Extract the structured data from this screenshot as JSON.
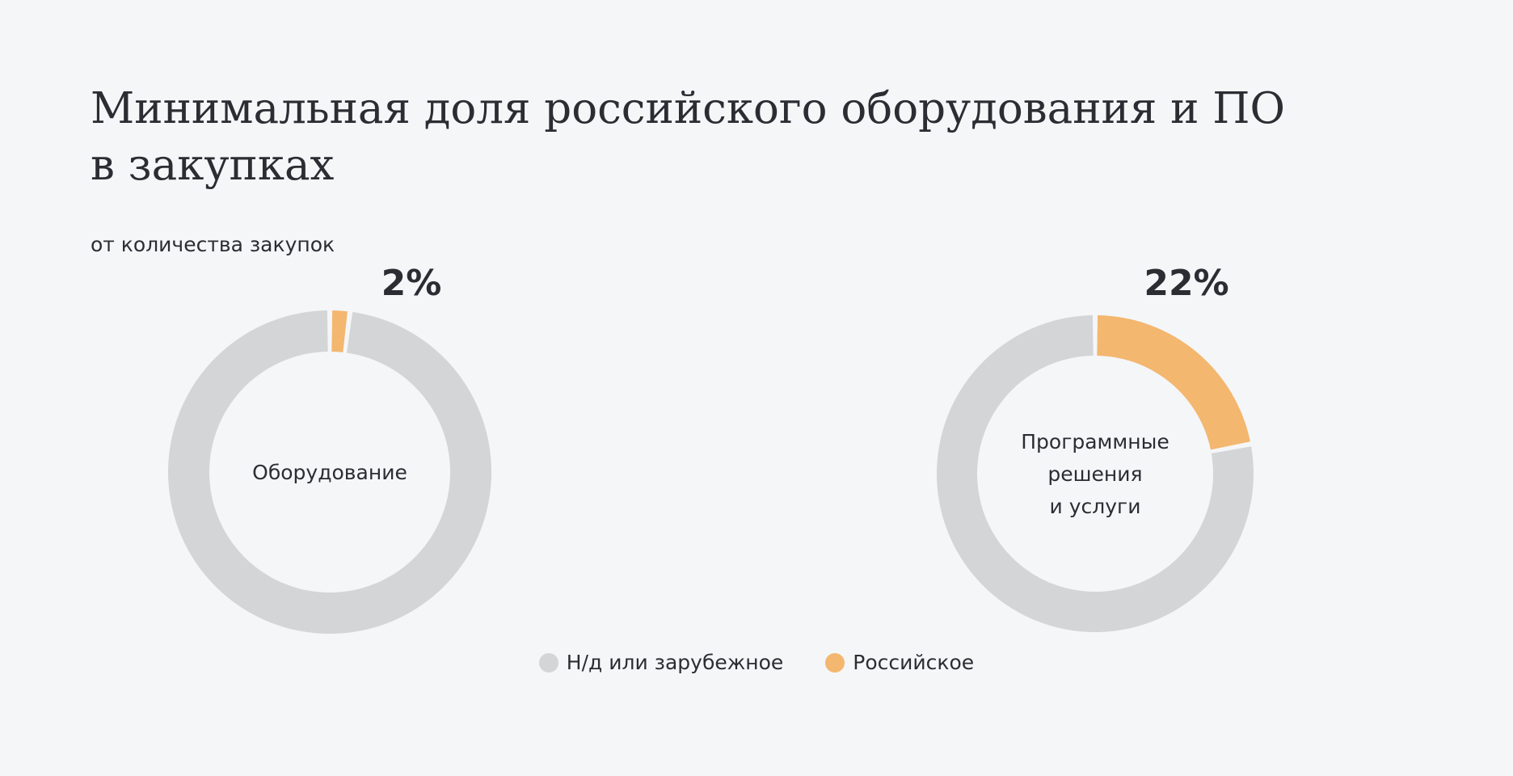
{
  "title": {
    "line1": "Минимальная доля российского оборудования и ПО",
    "line2": "в закупках"
  },
  "subtitle": "от количества закупок",
  "colors": {
    "foreign": "#d4d5d7",
    "russian": "#f3b76f",
    "background": "#f5f6f8",
    "text": "#2b2d33"
  },
  "chart_data": {
    "type": "pie",
    "variant": "donut",
    "charts": [
      {
        "label_lines": [
          "Оборудование"
        ],
        "russian_percent_label": "2%",
        "slices": [
          {
            "name": "Российское",
            "value": 2
          },
          {
            "name": "Н/д или зарубежное",
            "value": 98
          }
        ]
      },
      {
        "label_lines": [
          "Программные",
          "решения",
          "и услуги"
        ],
        "russian_percent_label": "22%",
        "slices": [
          {
            "name": "Российское",
            "value": 22
          },
          {
            "name": "Н/д или зарубежное",
            "value": 78
          }
        ]
      }
    ],
    "legend": [
      {
        "name": "Н/д или зарубежное",
        "color_key": "foreign"
      },
      {
        "name": "Российское",
        "color_key": "russian"
      }
    ],
    "legend_position": "bottom"
  }
}
